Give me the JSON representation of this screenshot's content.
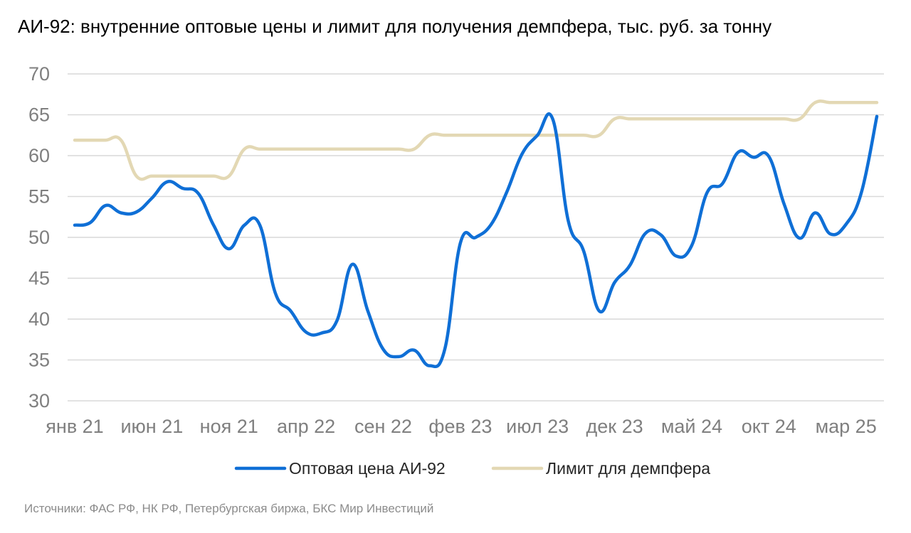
{
  "chart_data": {
    "type": "line",
    "title": "АИ-92: внутренние оптовые цены и лимит для получения демпфера, тыс. руб. за тонну",
    "xlabel": "",
    "ylabel": "",
    "ylim": [
      30,
      70
    ],
    "yticks": [
      "30",
      "35",
      "40",
      "45",
      "50",
      "55",
      "60",
      "65",
      "70"
    ],
    "grid": true,
    "legend_position": "bottom",
    "x": [
      "янв 21",
      "фев 21",
      "мар 21",
      "апр 21",
      "май 21",
      "июн 21",
      "июл 21",
      "авг 21",
      "сен 21",
      "окт 21",
      "ноя 21",
      "дек 21",
      "янв 22",
      "фев 22",
      "мар 22",
      "апр 22",
      "май 22",
      "июн 22",
      "июл 22",
      "авг 22",
      "сен 22",
      "окт 22",
      "ноя 22",
      "дек 22",
      "янв 23",
      "фев 23",
      "мар 23",
      "апр 23",
      "май 23",
      "июн 23",
      "июл 23",
      "авг 23",
      "сен 23",
      "окт 23",
      "ноя 23",
      "дек 23",
      "янв 24",
      "фев 24",
      "мар 24",
      "апр 24",
      "май 24",
      "июн 24",
      "июл 24",
      "авг 24",
      "сен 24",
      "окт 24",
      "ноя 24",
      "дек 24",
      "янв 25",
      "фев 25",
      "мар 25",
      "апр 25",
      "май 25"
    ],
    "x_tick_labels": [
      "янв 21",
      "июн 21",
      "ноя 21",
      "апр 22",
      "сен 22",
      "фев 23",
      "июл 23",
      "дек 23",
      "май 24",
      "окт 24",
      "мар 25"
    ],
    "series": [
      {
        "name": "Оптовая цена АИ-92",
        "color": "#0f6fd6",
        "values": [
          51.5,
          51.8,
          53.9,
          53.0,
          53.1,
          54.8,
          56.8,
          56.0,
          55.4,
          51.5,
          48.6,
          51.5,
          51.5,
          43.2,
          41.0,
          38.4,
          38.3,
          39.8,
          46.7,
          41.0,
          36.3,
          35.4,
          36.2,
          34.3,
          36.4,
          49.3,
          50.0,
          51.6,
          55.5,
          60.2,
          62.5,
          64.4,
          52.0,
          48.3,
          41.0,
          44.5,
          46.6,
          50.5,
          50.3,
          47.7,
          49.0,
          55.5,
          56.6,
          60.4,
          59.8,
          59.9,
          54.0,
          49.9,
          53.0,
          50.4,
          51.6,
          55.5,
          64.8
        ]
      },
      {
        "name": "Лимит для демпфера",
        "color": "#e3d8b4",
        "values": [
          61.9,
          61.9,
          61.9,
          61.9,
          57.5,
          57.5,
          57.5,
          57.5,
          57.5,
          57.5,
          57.5,
          60.8,
          60.8,
          60.8,
          60.8,
          60.8,
          60.8,
          60.8,
          60.8,
          60.8,
          60.8,
          60.8,
          60.8,
          62.5,
          62.5,
          62.5,
          62.5,
          62.5,
          62.5,
          62.5,
          62.5,
          62.5,
          62.5,
          62.5,
          62.5,
          64.5,
          64.5,
          64.5,
          64.5,
          64.5,
          64.5,
          64.5,
          64.5,
          64.5,
          64.5,
          64.5,
          64.5,
          64.5,
          66.5,
          66.5,
          66.5,
          66.5,
          66.5
        ]
      }
    ]
  },
  "source_note": "Источники: ФАС РФ, НК РФ, Петербургская биржа, БКС Мир Инвестиций"
}
